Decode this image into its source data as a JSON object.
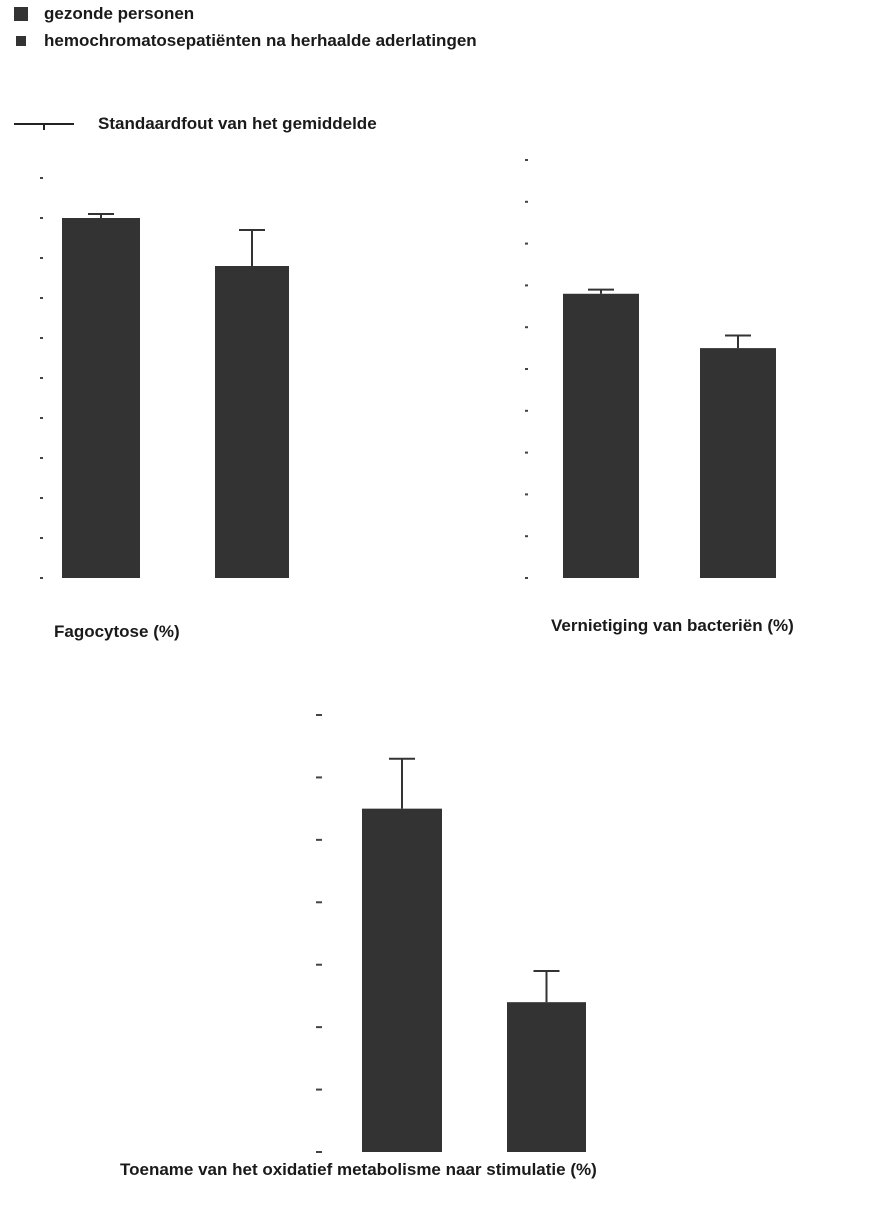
{
  "legend": {
    "series": [
      {
        "label": "gezonde personen",
        "color": "#333333"
      },
      {
        "label": "hemochromatosepatiënten na herhaalde aderlatingen",
        "color": "#333333"
      }
    ],
    "error_label": "Standaardfout van het gemiddelde"
  },
  "chart_data": [
    {
      "type": "bar",
      "title": "Fagocytose (%)",
      "categories": [
        "gezonde personen",
        "hemochromatosepatiënten na herhaalde aderlatingen"
      ],
      "values": [
        9.0,
        7.8
      ],
      "errors": [
        0.1,
        0.9
      ],
      "ylim": [
        0,
        10
      ],
      "yticks": [
        0,
        1,
        2,
        3,
        4,
        5,
        6,
        7,
        8,
        9,
        10
      ],
      "tick_labels_shown": false,
      "color": "#333333"
    },
    {
      "type": "bar",
      "title": "Vernietiging van bacteriën (%)",
      "categories": [
        "gezonde personen",
        "hemochromatosepatiënten na herhaalde aderlatingen"
      ],
      "values": [
        6.8,
        5.5
      ],
      "errors": [
        0.1,
        0.3
      ],
      "ylim": [
        0,
        10
      ],
      "yticks": [
        0,
        1,
        2,
        3,
        4,
        5,
        6,
        7,
        8,
        9,
        10
      ],
      "tick_labels_shown": false,
      "color": "#333333"
    },
    {
      "type": "bar",
      "title": "Toename van het oxidatief metabolisme naar stimulatie (%)",
      "categories": [
        "gezonde personen",
        "hemochromatosepatiënten na herhaalde aderlatingen"
      ],
      "values": [
        5.5,
        2.4
      ],
      "errors": [
        0.8,
        0.5
      ],
      "ylim": [
        0,
        7
      ],
      "yticks": [
        0,
        1,
        2,
        3,
        4,
        5,
        6,
        7
      ],
      "tick_labels_shown": false,
      "color": "#333333"
    }
  ]
}
